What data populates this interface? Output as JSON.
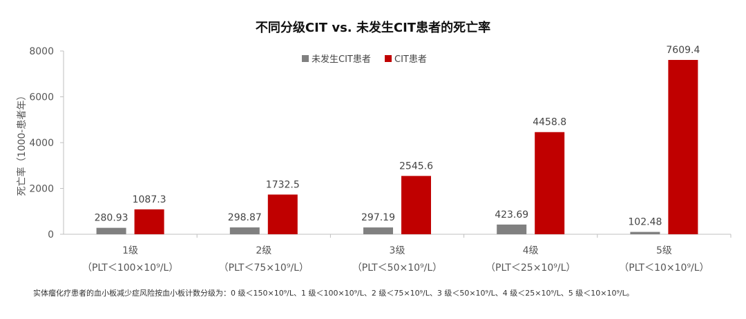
{
  "chart_data": {
    "type": "bar",
    "title": "不同分级CIT vs. 未发生CIT患者的死亡率",
    "ylabel": "死亡率（1000-患者年）",
    "xlabel": "",
    "ylim": [
      0,
      8000
    ],
    "yticks": [
      0,
      2000,
      4000,
      6000,
      8000
    ],
    "categories": [
      "1级",
      "2级",
      "3级",
      "4级",
      "5级"
    ],
    "category_sublabels": [
      "（PLT＜100×10⁹/L）",
      "（PLT＜75×10⁹/L）",
      "（PLT＜50×10⁹/L）",
      "（PLT＜25×10⁹/L）",
      "（PLT＜10×10⁹/L）"
    ],
    "series": [
      {
        "name": "未发生CIT患者",
        "color": "#808080",
        "values": [
          280.93,
          298.87,
          297.19,
          423.69,
          102.48
        ],
        "labels": [
          "280.93",
          "298.87",
          "297.19",
          "423.69",
          "102.48"
        ]
      },
      {
        "name": "CIT患者",
        "color": "#c00000",
        "values": [
          1087.3,
          1732.5,
          2545.6,
          4458.8,
          7609.4
        ],
        "labels": [
          "1087.3",
          "1732.5",
          "2545.6",
          "4458.8",
          "7609.4"
        ]
      }
    ],
    "legend_position": "top-center",
    "grid": false,
    "footnote": "实体瘤化疗患者的血小板减少症风险按血小板计数分级为：0 级＜150×10⁹/L、1 级＜100×10⁹/L、2 级＜75×10⁹/L、3 级＜50×10⁹/L、4 级＜25×10⁹/L、5 级＜10×10⁹/L。"
  }
}
